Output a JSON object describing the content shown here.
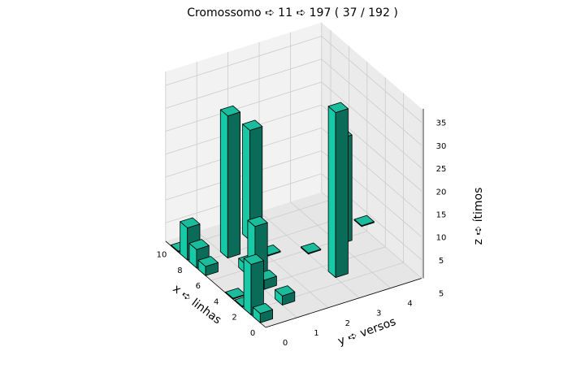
{
  "chart_data": {
    "type": "bar3d",
    "title": "Cromossomo ➪ 11 ➪ 197 ( 37 / 192 )",
    "xlabel": "x ➪ linhas",
    "ylabel": "y ➪ versos",
    "zlabel": "z ➪ ítimos",
    "xticks": [
      "0",
      "2",
      "4",
      "6",
      "8",
      "10"
    ],
    "yticks": [
      "0",
      "1",
      "2",
      "3",
      "4",
      "5"
    ],
    "zticks": [
      "5",
      "10",
      "15",
      "20",
      "25",
      "30",
      "35"
    ],
    "xlim": [
      0,
      11
    ],
    "ylim": [
      0,
      5
    ],
    "zlim": [
      1,
      38
    ],
    "grid": true,
    "bar_color": "#1abc9c",
    "edge_color": "#000000",
    "bars": [
      {
        "x": 1,
        "y": 0,
        "z": 3
      },
      {
        "x": 2,
        "y": 0,
        "z": 12
      },
      {
        "x": 2,
        "y": 1,
        "z": 3
      },
      {
        "x": 3,
        "y": 0,
        "z": 1
      },
      {
        "x": 4,
        "y": 0,
        "z": 1
      },
      {
        "x": 4,
        "y": 1,
        "z": 3
      },
      {
        "x": 5,
        "y": 1,
        "z": 13
      },
      {
        "x": 6,
        "y": 1,
        "z": 3
      },
      {
        "x": 7,
        "y": 0,
        "z": 3
      },
      {
        "x": 8,
        "y": 0,
        "z": 5
      },
      {
        "x": 8,
        "y": 1,
        "z": 32
      },
      {
        "x": 9,
        "y": 0,
        "z": 8
      },
      {
        "x": 9,
        "y": 2,
        "z": 25
      },
      {
        "x": 10,
        "y": 0,
        "z": 1
      },
      {
        "x": 3,
        "y": 3,
        "z": 37
      },
      {
        "x": 6,
        "y": 3,
        "z": 1
      },
      {
        "x": 6,
        "y": 4,
        "z": 24
      },
      {
        "x": 7,
        "y": 5,
        "z": 1
      },
      {
        "x": 7,
        "y": 2,
        "z": 1
      }
    ]
  }
}
